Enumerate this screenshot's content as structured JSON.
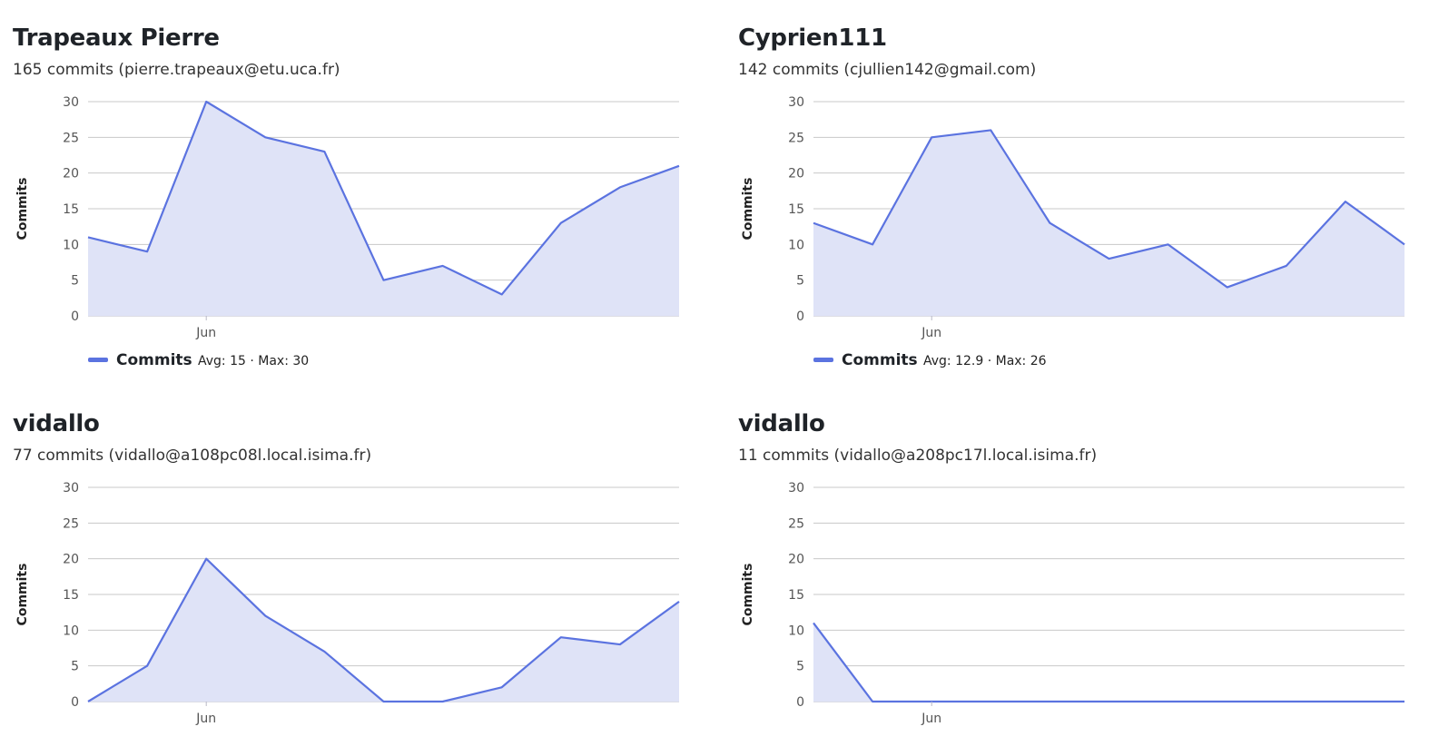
{
  "colors": {
    "line": "#5b73e0",
    "fill": "#dfe3f7",
    "grid": "#c8c8c8",
    "axis": "#b8b8c8"
  },
  "contributors": [
    {
      "name": "Trapeaux Pierre",
      "subtitle": "165 commits (pierre.trapeaux@etu.uca.fr)",
      "legend_label": "Commits",
      "legend_stats": "Avg: 15 · Max: 30"
    },
    {
      "name": "Cyprien111",
      "subtitle": "142 commits (cjullien142@gmail.com)",
      "legend_label": "Commits",
      "legend_stats": "Avg: 12.9 · Max: 26"
    },
    {
      "name": "vidallo",
      "subtitle": "77 commits (vidallo@a108pc08l.local.isima.fr)",
      "legend_label": "",
      "legend_stats": ""
    },
    {
      "name": "vidallo",
      "subtitle": "11 commits (vidallo@a208pc17l.local.isima.fr)",
      "legend_label": "",
      "legend_stats": ""
    }
  ],
  "chart_data": [
    {
      "type": "area",
      "ylabel": "Commits",
      "ylim": [
        0,
        30
      ],
      "yticks": [
        0,
        5,
        10,
        15,
        20,
        25,
        30
      ],
      "x_tick_labels": [
        {
          "index": 2,
          "label": "Jun"
        }
      ],
      "grid": true,
      "legend": "bottom-left",
      "series": [
        {
          "name": "Commits",
          "values": [
            11,
            9,
            30,
            25,
            23,
            5,
            7,
            3,
            13,
            18,
            21
          ]
        }
      ]
    },
    {
      "type": "area",
      "ylabel": "Commits",
      "ylim": [
        0,
        30
      ],
      "yticks": [
        0,
        5,
        10,
        15,
        20,
        25,
        30
      ],
      "x_tick_labels": [
        {
          "index": 2,
          "label": "Jun"
        }
      ],
      "grid": true,
      "legend": "bottom-left",
      "series": [
        {
          "name": "Commits",
          "values": [
            13,
            10,
            25,
            26,
            13,
            8,
            10,
            4,
            7,
            16,
            10
          ]
        }
      ]
    },
    {
      "type": "area",
      "ylabel": "Commits",
      "ylim": [
        0,
        30
      ],
      "yticks": [
        0,
        5,
        10,
        15,
        20,
        25,
        30
      ],
      "x_tick_labels": [
        {
          "index": 2,
          "label": "Jun"
        }
      ],
      "grid": true,
      "series": [
        {
          "name": "",
          "values": [
            0,
            5,
            20,
            12,
            7,
            0,
            0,
            2,
            9,
            8,
            14
          ]
        }
      ]
    },
    {
      "type": "area",
      "ylabel": "Commits",
      "ylim": [
        0,
        30
      ],
      "yticks": [
        0,
        5,
        10,
        15,
        20,
        25,
        30
      ],
      "x_tick_labels": [
        {
          "index": 2,
          "label": "Jun"
        }
      ],
      "grid": true,
      "series": [
        {
          "name": "",
          "values": [
            11,
            0,
            0,
            0,
            0,
            0,
            0,
            0,
            0,
            0,
            0
          ]
        }
      ]
    }
  ]
}
